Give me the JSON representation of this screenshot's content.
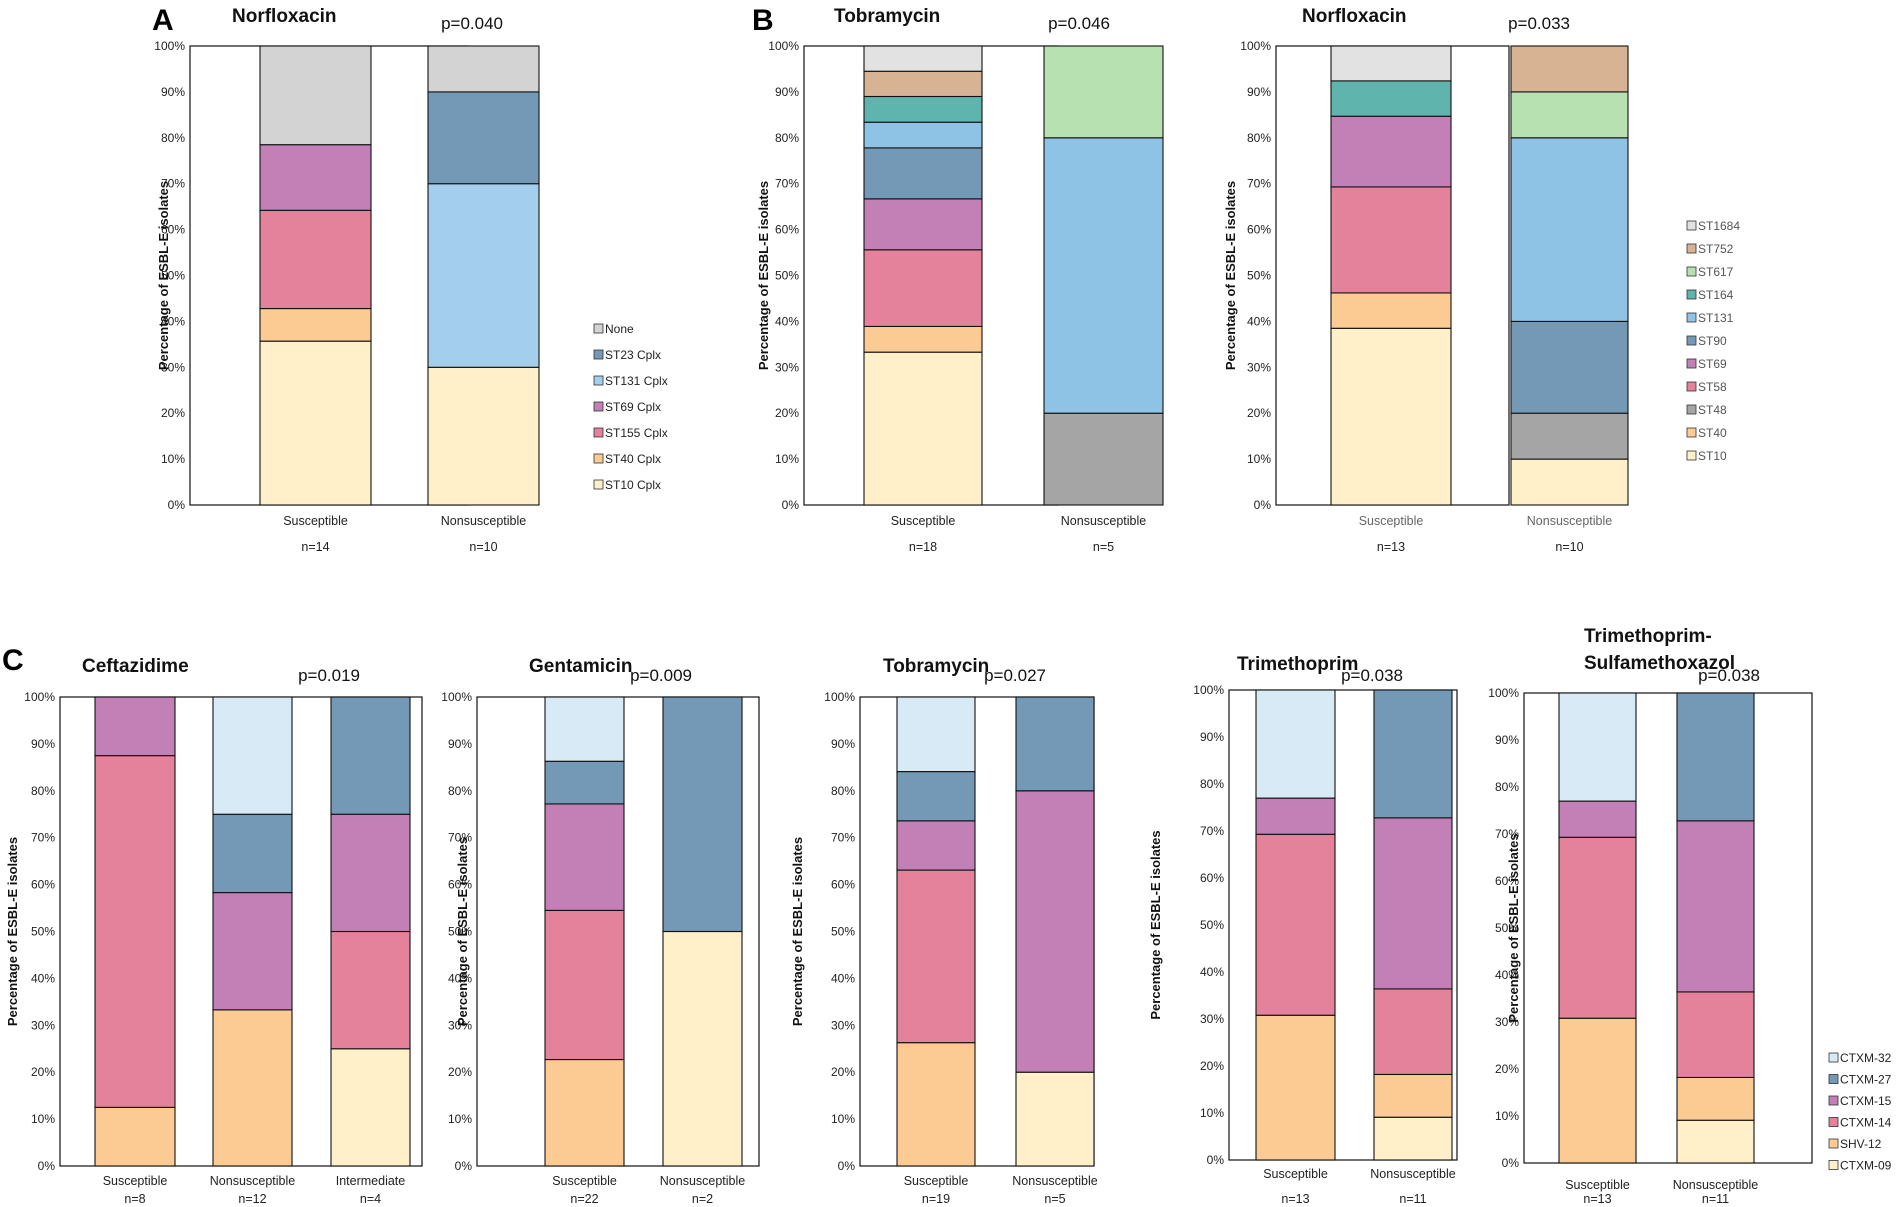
{
  "colors": {
    "None": "#d3d3d3",
    "ST23 Cplx": "#7399b6",
    "ST131 Cplx": "#a3cfec",
    "ST69 Cplx": "#c280b7",
    "ST155 Cplx": "#e3829a",
    "ST40 Cplx": "#fccb94",
    "ST10 Cplx": "#fff0c9",
    "ST1684": "#e2e2e2",
    "ST752": "#d7b293",
    "ST617": "#b8e1b1",
    "ST164": "#5fb4ae",
    "ST131": "#8ec3e6",
    "ST90": "#7399b6",
    "ST69": "#c280b7",
    "ST58": "#e3829a",
    "ST48": "#a5a5a5",
    "ST40": "#fccb94",
    "ST10": "#fff0c9",
    "CTXM-32": "#d9eaf7",
    "CTXM-27": "#7399b6",
    "CTXM-15": "#c280b7",
    "CTXM-14": "#e3829a",
    "SHV-12": "#fccb94",
    "CTXM-09": "#fff0c9"
  },
  "panel_labels": [
    "A",
    "B",
    "C"
  ],
  "legends": [
    {
      "items": [
        "None",
        "ST23 Cplx",
        "ST131 Cplx",
        "ST69 Cplx",
        "ST155 Cplx",
        "ST40 Cplx",
        "ST10 Cplx"
      ]
    },
    {
      "items": [
        "ST1684",
        "ST752",
        "ST617",
        "ST164",
        "ST131",
        "ST90",
        "ST69",
        "ST58",
        "ST48",
        "ST40",
        "ST10"
      ]
    },
    {
      "items": [
        "CTXM-32",
        "CTXM-27",
        "CTXM-15",
        "CTXM-14",
        "SHV-12",
        "CTXM-09"
      ]
    }
  ],
  "chart_data": [
    {
      "type": "bar",
      "stacked": true,
      "title": "Norfloxacin",
      "pvalue": "p=0.040",
      "ylabel": "Percentage of ESBL-E isolates",
      "ylim": [
        0,
        100
      ],
      "yticks": [
        "0%",
        "10%",
        "20%",
        "30%",
        "40%",
        "50%",
        "60%",
        "70%",
        "80%",
        "90%",
        "100%"
      ],
      "categories": [
        "Susceptible",
        "Nonsusceptible"
      ],
      "n_labels": [
        "n=14",
        "n=10"
      ],
      "series": [
        {
          "name": "ST10 Cplx",
          "values": [
            35.7,
            30
          ]
        },
        {
          "name": "ST40 Cplx",
          "values": [
            7.1,
            0
          ]
        },
        {
          "name": "ST155 Cplx",
          "values": [
            21.4,
            0
          ]
        },
        {
          "name": "ST69 Cplx",
          "values": [
            14.3,
            0
          ]
        },
        {
          "name": "ST131 Cplx",
          "values": [
            0,
            40
          ]
        },
        {
          "name": "ST23 Cplx",
          "values": [
            0,
            20
          ]
        },
        {
          "name": "None",
          "values": [
            21.5,
            10
          ]
        }
      ]
    },
    {
      "type": "bar",
      "stacked": true,
      "title": "Tobramycin",
      "pvalue": "p=0.046",
      "ylabel": "Percentage of ESBL-E isolates",
      "ylim": [
        0,
        100
      ],
      "yticks": [
        "0%",
        "10%",
        "20%",
        "30%",
        "40%",
        "50%",
        "60%",
        "70%",
        "80%",
        "90%",
        "100%"
      ],
      "categories": [
        "Susceptible",
        "Nonsusceptible"
      ],
      "n_labels": [
        "n=18",
        "n=5"
      ],
      "series": [
        {
          "name": "ST10",
          "values": [
            33.3,
            0
          ]
        },
        {
          "name": "ST40",
          "values": [
            5.6,
            0
          ]
        },
        {
          "name": "ST48",
          "values": [
            0,
            20
          ]
        },
        {
          "name": "ST58",
          "values": [
            16.7,
            0
          ]
        },
        {
          "name": "ST69",
          "values": [
            11.1,
            0
          ]
        },
        {
          "name": "ST90",
          "values": [
            11.1,
            0
          ]
        },
        {
          "name": "ST131",
          "values": [
            5.6,
            60
          ]
        },
        {
          "name": "ST164",
          "values": [
            5.6,
            0
          ]
        },
        {
          "name": "ST617",
          "values": [
            0,
            20
          ]
        },
        {
          "name": "ST752",
          "values": [
            5.5,
            0
          ]
        },
        {
          "name": "ST1684",
          "values": [
            5.5,
            0
          ]
        }
      ]
    },
    {
      "type": "bar",
      "stacked": true,
      "title": "Norfloxacin",
      "pvalue": "p=0.033",
      "ylabel": "Percentage of ESBL-E isolates",
      "ylim": [
        0,
        100
      ],
      "yticks": [
        "0%",
        "10%",
        "20%",
        "30%",
        "40%",
        "50%",
        "60%",
        "70%",
        "80%",
        "90%",
        "100%"
      ],
      "categories": [
        "Susceptible",
        "Nonsusceptible"
      ],
      "n_labels": [
        "n=13",
        "n=10"
      ],
      "series": [
        {
          "name": "ST10",
          "values": [
            38.5,
            10
          ]
        },
        {
          "name": "ST40",
          "values": [
            7.7,
            0
          ]
        },
        {
          "name": "ST48",
          "values": [
            0,
            10
          ]
        },
        {
          "name": "ST90",
          "values": [
            0,
            20
          ]
        },
        {
          "name": "ST58",
          "values": [
            23.1,
            0
          ]
        },
        {
          "name": "ST69",
          "values": [
            15.4,
            0
          ]
        },
        {
          "name": "ST131",
          "values": [
            0,
            40
          ]
        },
        {
          "name": "ST164",
          "values": [
            7.7,
            0
          ]
        },
        {
          "name": "ST617",
          "values": [
            0,
            10
          ]
        },
        {
          "name": "ST752",
          "values": [
            0,
            10
          ]
        },
        {
          "name": "ST1684",
          "values": [
            7.6,
            0
          ]
        }
      ]
    },
    {
      "type": "bar",
      "stacked": true,
      "title": "Ceftazidime",
      "pvalue": "p=0.019",
      "ylabel": "Percentage of ESBL-E isolates",
      "ylim": [
        0,
        100
      ],
      "yticks": [
        "0%",
        "10%",
        "20%",
        "30%",
        "40%",
        "50%",
        "60%",
        "70%",
        "80%",
        "90%",
        "100%"
      ],
      "categories": [
        "Susceptible",
        "Nonsusceptible",
        "Intermediate"
      ],
      "n_labels": [
        "n=8",
        "n=12",
        "n=4"
      ],
      "series": [
        {
          "name": "CTXM-09",
          "values": [
            0,
            0,
            25
          ]
        },
        {
          "name": "SHV-12",
          "values": [
            12.5,
            33.3,
            0
          ]
        },
        {
          "name": "CTXM-14",
          "values": [
            75,
            0,
            25
          ]
        },
        {
          "name": "CTXM-15",
          "values": [
            12.5,
            25,
            25
          ]
        },
        {
          "name": "CTXM-27",
          "values": [
            0,
            16.7,
            25
          ]
        },
        {
          "name": "CTXM-32",
          "values": [
            0,
            25,
            0
          ]
        }
      ]
    },
    {
      "type": "bar",
      "stacked": true,
      "title": "Gentamicin",
      "pvalue": "p=0.009",
      "ylabel": "Percentage of ESBL-E isolates",
      "ylim": [
        0,
        100
      ],
      "yticks": [
        "0%",
        "10%",
        "20%",
        "30%",
        "40%",
        "50%",
        "60%",
        "70%",
        "80%",
        "90%",
        "100%"
      ],
      "categories": [
        "Susceptible",
        "Nonsusceptible"
      ],
      "n_labels": [
        "n=22",
        "n=2"
      ],
      "series": [
        {
          "name": "CTXM-09",
          "values": [
            0,
            50
          ]
        },
        {
          "name": "SHV-12",
          "values": [
            22.7,
            0
          ]
        },
        {
          "name": "CTXM-14",
          "values": [
            31.8,
            0
          ]
        },
        {
          "name": "CTXM-15",
          "values": [
            22.7,
            0
          ]
        },
        {
          "name": "CTXM-27",
          "values": [
            9.1,
            50
          ]
        },
        {
          "name": "CTXM-32",
          "values": [
            13.7,
            0
          ]
        }
      ]
    },
    {
      "type": "bar",
      "stacked": true,
      "title": "Tobramycin",
      "pvalue": "p=0.027",
      "ylabel": "Percentage of ESBL-E isolates",
      "ylim": [
        0,
        100
      ],
      "yticks": [
        "0%",
        "10%",
        "20%",
        "30%",
        "40%",
        "50%",
        "60%",
        "70%",
        "80%",
        "90%",
        "100%"
      ],
      "categories": [
        "Susceptible",
        "Nonsusceptible"
      ],
      "n_labels": [
        "n=19",
        "n=5"
      ],
      "series": [
        {
          "name": "CTXM-09",
          "values": [
            0,
            20
          ]
        },
        {
          "name": "SHV-12",
          "values": [
            26.3,
            0
          ]
        },
        {
          "name": "CTXM-14",
          "values": [
            36.8,
            0
          ]
        },
        {
          "name": "CTXM-15",
          "values": [
            10.5,
            60
          ]
        },
        {
          "name": "CTXM-27",
          "values": [
            10.5,
            20
          ]
        },
        {
          "name": "CTXM-32",
          "values": [
            15.9,
            0
          ]
        }
      ]
    },
    {
      "type": "bar",
      "stacked": true,
      "title": "Trimethoprim",
      "pvalue": "p=0.038",
      "ylabel": "Percentage of ESBL-E isolates",
      "ylim": [
        0,
        100
      ],
      "yticks": [
        "0%",
        "10%",
        "20%",
        "30%",
        "40%",
        "50%",
        "60%",
        "70%",
        "80%",
        "90%",
        "100%"
      ],
      "categories": [
        "Susceptible",
        "Nonsusceptible"
      ],
      "n_labels": [
        "n=13",
        "n=11"
      ],
      "series": [
        {
          "name": "CTXM-09",
          "values": [
            0,
            9.1
          ]
        },
        {
          "name": "SHV-12",
          "values": [
            30.8,
            9.1
          ]
        },
        {
          "name": "CTXM-14",
          "values": [
            38.5,
            18.2
          ]
        },
        {
          "name": "CTXM-15",
          "values": [
            7.7,
            36.4
          ]
        },
        {
          "name": "CTXM-27",
          "values": [
            0,
            27.2
          ]
        },
        {
          "name": "CTXM-32",
          "values": [
            23,
            0
          ]
        }
      ]
    },
    {
      "type": "bar",
      "stacked": true,
      "title": "Trimethoprim-Sulfamethoxazol",
      "title_lines": [
        "Trimethoprim-",
        "Sulfamethoxazol"
      ],
      "pvalue": "p=0.038",
      "ylabel": "Percentage of ESBL-E isolates",
      "ylim": [
        0,
        100
      ],
      "yticks": [
        "0%",
        "10%",
        "20%",
        "30%",
        "40%",
        "50%",
        "60%",
        "70%",
        "80%",
        "90%",
        "100%"
      ],
      "categories": [
        "Susceptible",
        "Nonsusceptible"
      ],
      "n_labels": [
        "n=13",
        "n=11"
      ],
      "series": [
        {
          "name": "CTXM-09",
          "values": [
            0,
            9.1
          ]
        },
        {
          "name": "SHV-12",
          "values": [
            30.8,
            9.1
          ]
        },
        {
          "name": "CTXM-14",
          "values": [
            38.5,
            18.2
          ]
        },
        {
          "name": "CTXM-15",
          "values": [
            7.7,
            36.4
          ]
        },
        {
          "name": "CTXM-27",
          "values": [
            0,
            27.2
          ]
        },
        {
          "name": "CTXM-32",
          "values": [
            23,
            0
          ]
        }
      ]
    }
  ]
}
